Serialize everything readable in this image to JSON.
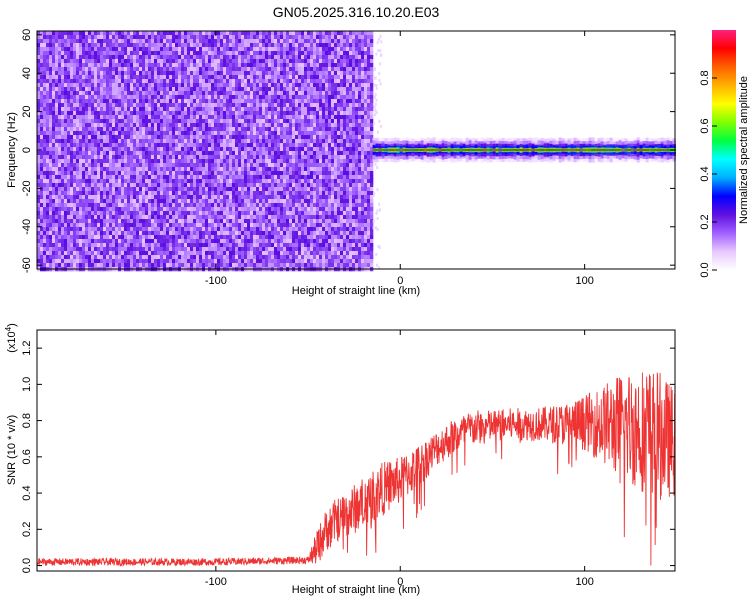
{
  "title": "GN05.2025.316.10.20.E03",
  "chart_data": [
    {
      "type": "heatmap",
      "xlabel": "Height of straight line (km)",
      "ylabel": "Frequency (Hz)",
      "xlim": [
        -197,
        149
      ],
      "ylim": [
        -62,
        62
      ],
      "x_ticks": [
        -100,
        0,
        100
      ],
      "x_tick_labels": [
        "-100",
        "0",
        "100"
      ],
      "y_ticks": [
        -60,
        -40,
        -20,
        0,
        20,
        40,
        60
      ],
      "y_tick_labels": [
        "-60",
        "-40",
        "-20",
        "0",
        "20",
        "40",
        "60"
      ],
      "noise_region_x": [
        -197,
        -15
      ],
      "signal_band_x": [
        -15,
        149
      ],
      "signal_band_frequency_hz": 0,
      "colorbar": {
        "label": "Normalized spectral amplitude",
        "range": [
          0,
          1
        ],
        "ticks": [
          0.0,
          0.2,
          0.4,
          0.6,
          0.8
        ],
        "tick_labels": [
          "0.0",
          "0.2",
          "0.4",
          "0.6",
          "0.8"
        ],
        "colors": [
          "#ffffff",
          "#e8c8ff",
          "#a060ff",
          "#6010e0",
          "#0000ff",
          "#00b0ff",
          "#00ffff",
          "#00ff40",
          "#80ff00",
          "#ffff00",
          "#ffb000",
          "#ff6000",
          "#ff0000",
          "#ff2080"
        ]
      }
    },
    {
      "type": "line",
      "xlabel": "Height of straight line (km)",
      "ylabel": "SNR (10 * v/v)",
      "scale_label": "(x10",
      "scale_exp": "4",
      "scale_close": ")",
      "xlim": [
        -197,
        149
      ],
      "ylim": [
        -0.03,
        1.3
      ],
      "x_ticks": [
        -100,
        0,
        100
      ],
      "x_tick_labels": [
        "-100",
        "0",
        "100"
      ],
      "y_ticks": [
        0.0,
        0.2,
        0.4,
        0.6,
        0.8,
        1.0,
        1.2
      ],
      "y_tick_labels": [
        "0.0",
        "0.2",
        "0.4",
        "0.6",
        "0.8",
        "1.0",
        "1.2"
      ],
      "color": "#ee3333",
      "envelope": {
        "x": [
          -197,
          -150,
          -100,
          -50,
          -45,
          -40,
          -35,
          -30,
          -25,
          -20,
          -15,
          -10,
          -5,
          0,
          10,
          20,
          30,
          40,
          50,
          60,
          70,
          80,
          90,
          100,
          110,
          120,
          130,
          140,
          149
        ],
        "mean": [
          0.02,
          0.02,
          0.02,
          0.03,
          0.1,
          0.2,
          0.25,
          0.28,
          0.31,
          0.35,
          0.38,
          0.42,
          0.45,
          0.47,
          0.55,
          0.65,
          0.72,
          0.76,
          0.77,
          0.78,
          0.78,
          0.78,
          0.78,
          0.79,
          0.78,
          0.77,
          0.76,
          0.72,
          0.68
        ],
        "spread": [
          0.02,
          0.02,
          0.02,
          0.02,
          0.1,
          0.12,
          0.12,
          0.13,
          0.14,
          0.14,
          0.15,
          0.15,
          0.14,
          0.13,
          0.12,
          0.1,
          0.1,
          0.1,
          0.09,
          0.09,
          0.09,
          0.1,
          0.12,
          0.15,
          0.22,
          0.3,
          0.35,
          0.36,
          0.3
        ]
      }
    }
  ]
}
